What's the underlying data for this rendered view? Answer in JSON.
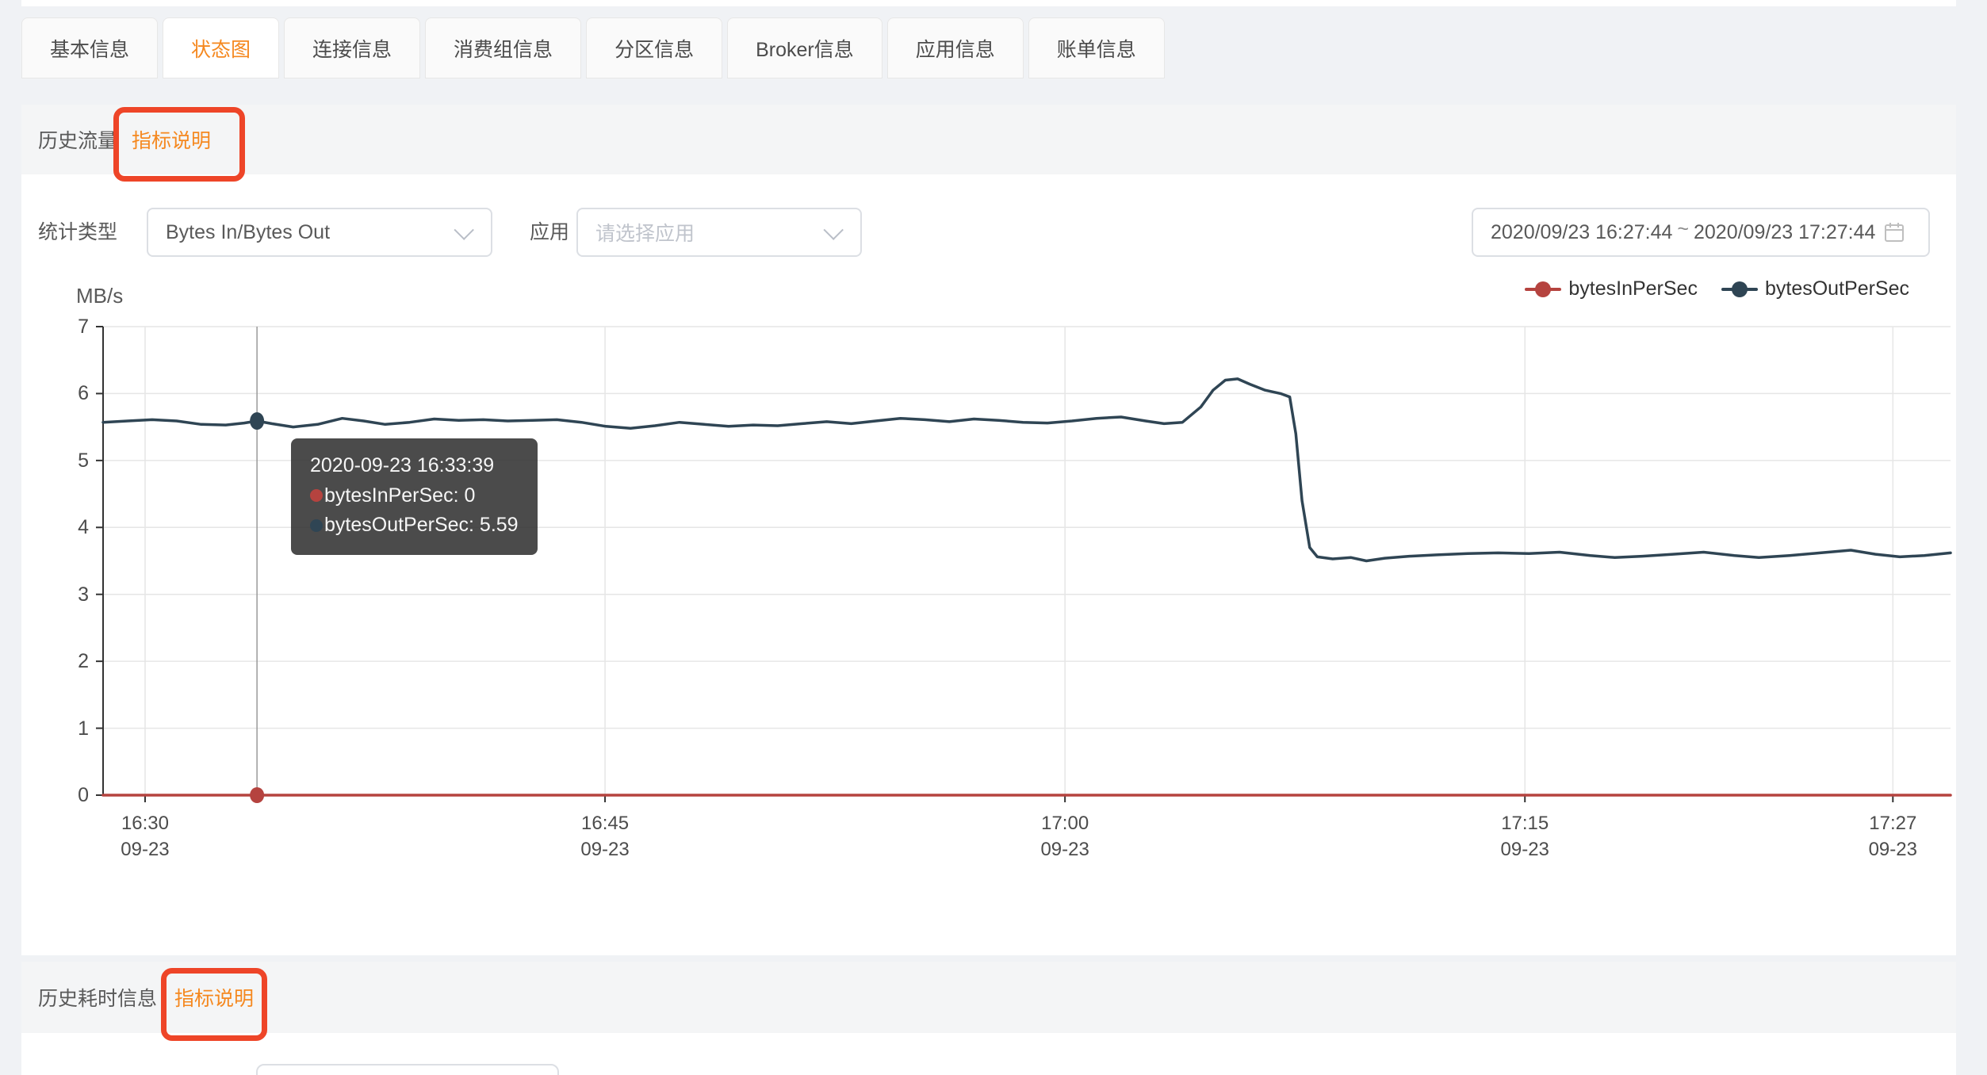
{
  "tabs": {
    "items": [
      {
        "label": "基本信息",
        "active": false
      },
      {
        "label": "状态图",
        "active": true
      },
      {
        "label": "连接信息",
        "active": false
      },
      {
        "label": "消费组信息",
        "active": false
      },
      {
        "label": "分区信息",
        "active": false
      },
      {
        "label": "Broker信息",
        "active": false
      },
      {
        "label": "应用信息",
        "active": false
      },
      {
        "label": "账单信息",
        "active": false
      }
    ]
  },
  "panel1": {
    "title": "历史流量",
    "metric_link": "指标说明"
  },
  "panel2": {
    "title": "历史耗时信息",
    "metric_link": "指标说明"
  },
  "filters": {
    "stat_type_label": "统计类型",
    "stat_type_value": "Bytes In/Bytes Out",
    "app_label": "应用",
    "app_placeholder": "请选择应用",
    "date_start": "2020/09/23 16:27:44",
    "date_tilde": "~",
    "date_end": "2020/09/23 17:27:44"
  },
  "icons": {
    "select_chevron": "chevron-down-icon",
    "date_picker": "calendar-icon",
    "legend_marker": "line-dot-marker"
  },
  "colors": {
    "accent_orange": "#f5881f",
    "annotation_red": "#ee4528",
    "series_in": "#b5433f",
    "series_out": "#2f4554",
    "grid_line": "#e6e6e6",
    "axis_line": "#333333"
  },
  "chart_data": {
    "type": "line",
    "unit": "MB/s",
    "ylim": [
      0,
      7
    ],
    "y_ticks": [
      0,
      1,
      2,
      3,
      4,
      5,
      6,
      7
    ],
    "x_range_minutes": 60.25,
    "grid": true,
    "legend_position": "top-right",
    "x_ticks": [
      {
        "t": 1.37,
        "time": "16:30",
        "date": "09-23"
      },
      {
        "t": 16.37,
        "time": "16:45",
        "date": "09-23"
      },
      {
        "t": 31.37,
        "time": "17:00",
        "date": "09-23"
      },
      {
        "t": 46.37,
        "time": "17:15",
        "date": "09-23"
      },
      {
        "t": 58.37,
        "time": "17:27",
        "date": "09-23"
      }
    ],
    "series": [
      {
        "name": "bytesInPerSec",
        "color": "#b5433f",
        "points": [
          [
            0,
            0
          ],
          [
            60.25,
            0
          ]
        ]
      },
      {
        "name": "bytesOutPerSec",
        "color": "#2f4554",
        "points": [
          [
            0,
            5.57
          ],
          [
            0.8,
            5.59
          ],
          [
            1.6,
            5.61
          ],
          [
            2.4,
            5.59
          ],
          [
            3.2,
            5.54
          ],
          [
            4,
            5.53
          ],
          [
            4.6,
            5.56
          ],
          [
            5.02,
            5.59
          ],
          [
            5.5,
            5.55
          ],
          [
            6.2,
            5.5
          ],
          [
            7,
            5.54
          ],
          [
            7.8,
            5.63
          ],
          [
            8.5,
            5.59
          ],
          [
            9.2,
            5.54
          ],
          [
            10,
            5.57
          ],
          [
            10.8,
            5.62
          ],
          [
            11.6,
            5.6
          ],
          [
            12.4,
            5.61
          ],
          [
            13.2,
            5.59
          ],
          [
            14,
            5.6
          ],
          [
            14.8,
            5.61
          ],
          [
            15.6,
            5.57
          ],
          [
            16.4,
            5.51
          ],
          [
            17.2,
            5.48
          ],
          [
            18,
            5.52
          ],
          [
            18.8,
            5.57
          ],
          [
            19.6,
            5.54
          ],
          [
            20.4,
            5.51
          ],
          [
            21.2,
            5.53
          ],
          [
            22,
            5.52
          ],
          [
            22.8,
            5.55
          ],
          [
            23.6,
            5.58
          ],
          [
            24.4,
            5.55
          ],
          [
            25.2,
            5.59
          ],
          [
            26,
            5.63
          ],
          [
            26.8,
            5.61
          ],
          [
            27.6,
            5.58
          ],
          [
            28.4,
            5.62
          ],
          [
            29.2,
            5.6
          ],
          [
            30,
            5.57
          ],
          [
            30.8,
            5.56
          ],
          [
            31.6,
            5.59
          ],
          [
            32.4,
            5.63
          ],
          [
            33.2,
            5.65
          ],
          [
            34,
            5.59
          ],
          [
            34.6,
            5.55
          ],
          [
            35.2,
            5.57
          ],
          [
            35.8,
            5.8
          ],
          [
            36.2,
            6.05
          ],
          [
            36.6,
            6.2
          ],
          [
            37,
            6.22
          ],
          [
            37.4,
            6.14
          ],
          [
            37.9,
            6.05
          ],
          [
            38.4,
            6.0
          ],
          [
            38.7,
            5.95
          ],
          [
            38.9,
            5.4
          ],
          [
            39.1,
            4.4
          ],
          [
            39.35,
            3.7
          ],
          [
            39.6,
            3.56
          ],
          [
            40.1,
            3.53
          ],
          [
            40.7,
            3.55
          ],
          [
            41.2,
            3.5
          ],
          [
            41.8,
            3.54
          ],
          [
            42.6,
            3.57
          ],
          [
            43.5,
            3.59
          ],
          [
            44.5,
            3.61
          ],
          [
            45.5,
            3.62
          ],
          [
            46.5,
            3.61
          ],
          [
            47.5,
            3.63
          ],
          [
            48.5,
            3.58
          ],
          [
            49.3,
            3.55
          ],
          [
            50.2,
            3.57
          ],
          [
            51.2,
            3.6
          ],
          [
            52.2,
            3.63
          ],
          [
            53.2,
            3.58
          ],
          [
            54,
            3.55
          ],
          [
            55,
            3.58
          ],
          [
            56,
            3.62
          ],
          [
            57,
            3.66
          ],
          [
            57.8,
            3.6
          ],
          [
            58.6,
            3.56
          ],
          [
            59.4,
            3.58
          ],
          [
            60.25,
            3.62
          ]
        ]
      }
    ],
    "crosshair": {
      "t": 5.02
    },
    "markers": [
      {
        "series": "bytesOutPerSec",
        "t": 5.02,
        "value": 5.59
      },
      {
        "series": "bytesInPerSec",
        "t": 5.02,
        "value": 0
      }
    ],
    "tooltip": {
      "title": "2020-09-23 16:33:39",
      "rows": [
        {
          "label": "bytesInPerSec",
          "value": "0",
          "color": "#b5433f"
        },
        {
          "label": "bytesOutPerSec",
          "value": "5.59",
          "color": "#2f4554"
        }
      ]
    }
  }
}
